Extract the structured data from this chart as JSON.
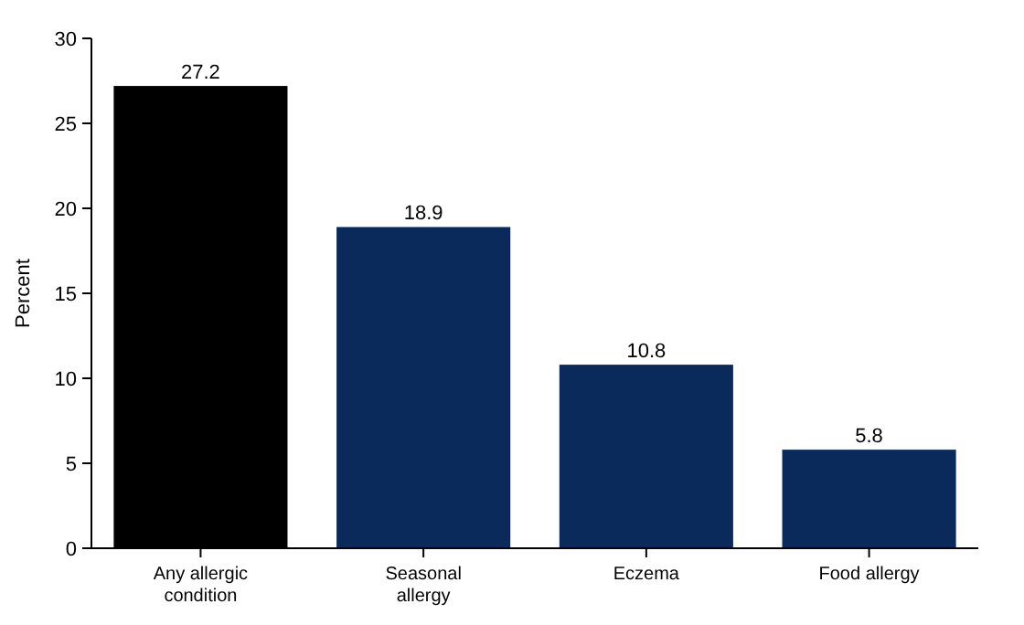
{
  "chart_data": {
    "type": "bar",
    "ylabel": "Percent",
    "categories": [
      "Any allergic condition",
      "Seasonal allergy",
      "Eczema",
      "Food allergy"
    ],
    "values": [
      27.2,
      18.9,
      10.8,
      5.8
    ],
    "colors": [
      "#000000",
      "#0a2a5c",
      "#0a2a5c",
      "#0a2a5c"
    ],
    "ylim": [
      0,
      30
    ],
    "yticks": [
      0,
      5,
      10,
      15,
      20,
      25,
      30
    ],
    "data_labels": true
  }
}
